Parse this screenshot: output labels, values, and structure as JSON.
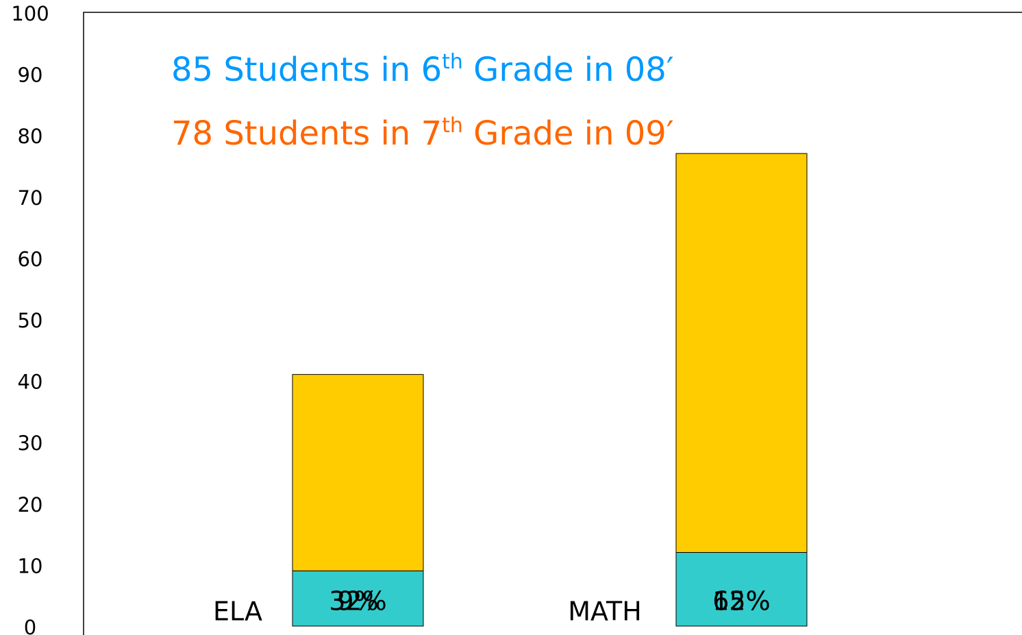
{
  "chart_data": {
    "type": "stacked_bar",
    "annotations": [
      {
        "parts": [
          "85 Students in 6",
          "th",
          " Grade in 08′"
        ],
        "color": "#0099ff"
      },
      {
        "parts": [
          "78 Students in 7",
          "th",
          " Grade in 09′"
        ],
        "color": "#ff6600"
      }
    ],
    "categories": [
      "ELA",
      "MATH"
    ],
    "series": [
      {
        "color": "#33cccc",
        "values": [
          9,
          12
        ],
        "value_labels": [
          "9%",
          "12%"
        ]
      },
      {
        "color": "#ffcc00",
        "values": [
          32,
          65
        ],
        "value_labels": [
          "32%",
          "65%"
        ]
      }
    ],
    "ylim": [
      0,
      100
    ],
    "yticks": [
      0,
      10,
      20,
      30,
      40,
      50,
      60,
      70,
      80,
      90,
      100
    ]
  }
}
